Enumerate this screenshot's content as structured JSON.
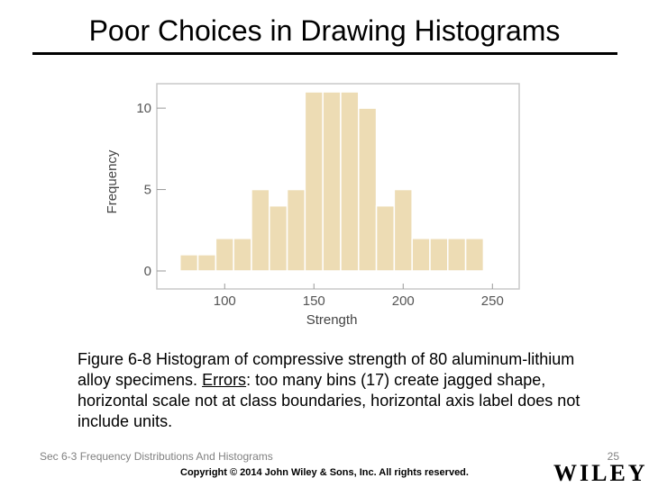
{
  "slide": {
    "title": "Poor Choices in Drawing Histograms",
    "caption": {
      "part1": "Figure 6-8  Histogram of compressive strength of 80 aluminum-lithium alloy specimens.  ",
      "errors_label": "Errors",
      "part2": ":  too many bins (17) create jagged shape, horizontal scale not at class boundaries, horizontal axis label does not include units."
    },
    "footer_left": "Sec 6-3 Frequency Distributions And Histograms",
    "page_number": "25",
    "copyright": "Copyright © 2014 John Wiley & Sons, Inc. All rights reserved.",
    "logo": "WILEY"
  },
  "chart_data": {
    "type": "bar",
    "xlabel": "Strength",
    "ylabel": "Frequency",
    "x_ticks": [
      100,
      150,
      200,
      250
    ],
    "y_ticks": [
      0,
      5,
      10
    ],
    "xlim": [
      62,
      265
    ],
    "ylim": [
      0,
      11.5
    ],
    "bin_edges": [
      75,
      85,
      95,
      105,
      115,
      125,
      135,
      145,
      155,
      165,
      175,
      185,
      195,
      205,
      215,
      225,
      235,
      245
    ],
    "values": [
      1,
      1,
      2,
      2,
      5,
      4,
      5,
      11,
      11,
      11,
      10,
      4,
      5,
      2,
      2,
      2,
      2
    ],
    "colors": {
      "bar": "#eddcb4",
      "bar_edge": "#ffffff",
      "plot_border": "#c9c9c9",
      "tick_text": "#555555",
      "label_text": "#444444"
    },
    "grid": false
  }
}
